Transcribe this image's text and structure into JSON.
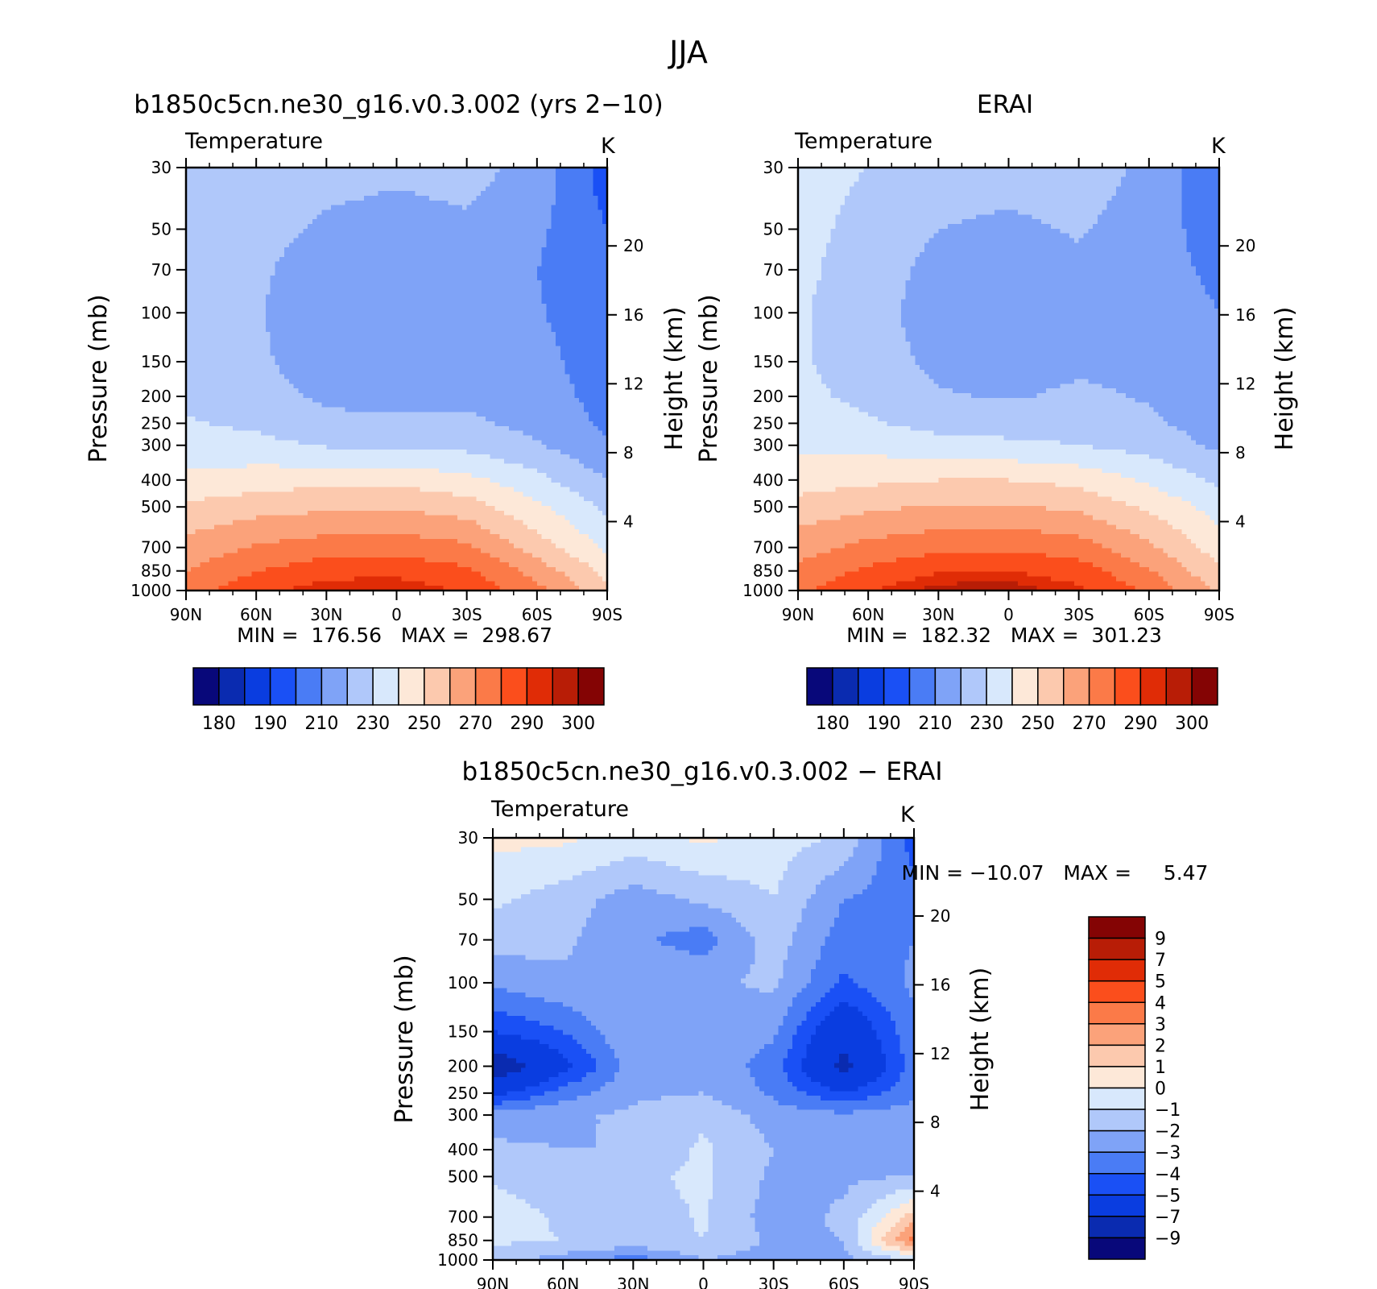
{
  "figure": {
    "title": "JJA"
  },
  "palettes": {
    "abs": [
      "#08087a",
      "#0a2bb0",
      "#0a3de0",
      "#1a50f5",
      "#4a7cf5",
      "#7fa3f7",
      "#b0c8fa",
      "#d8e8fc",
      "#fde8d8",
      "#fcc9ae",
      "#fba27a",
      "#fb7a48",
      "#fb4e1c",
      "#e02c06",
      "#b81d06",
      "#840404"
    ],
    "diff": [
      "#08087a",
      "#0a2bb0",
      "#0a3de0",
      "#1a50f5",
      "#4a7cf5",
      "#7fa3f7",
      "#b0c8fa",
      "#d8e8fc",
      "#fde8d8",
      "#fcc9ae",
      "#fba27a",
      "#fb7a48",
      "#fb4e1c",
      "#e02c06",
      "#b81d06",
      "#840404"
    ]
  },
  "common": {
    "variable": "Temperature",
    "units": "K",
    "ylabel": "Pressure (mb)",
    "ylabel_right": "Height (km)",
    "pressure_ticks": [
      "30",
      "50",
      "70",
      "100",
      "150",
      "200",
      "250",
      "300",
      "400",
      "500",
      "700",
      "850",
      "1000"
    ],
    "height_ticks": [
      "20",
      "16",
      "12",
      "8",
      "4"
    ],
    "lat_ticks": [
      "90N",
      "60N",
      "30N",
      "0",
      "30S",
      "60S",
      "90S"
    ]
  },
  "chart_data": [
    {
      "type": "heatmap",
      "title": "b1850c5cn.ne30_g16.v0.3.002 (yrs 2−10)",
      "stats": "MIN =  176.56   MAX =  298.67",
      "colorbar_labels": [
        "180",
        "190",
        "210",
        "230",
        "250",
        "270",
        "290",
        "300"
      ],
      "x": [
        -90,
        -60,
        -30,
        0,
        30,
        60,
        90
      ],
      "y": [
        30,
        50,
        70,
        100,
        150,
        200,
        250,
        300,
        400,
        500,
        700,
        850,
        1000
      ],
      "z": [
        [
          229,
          228,
          224,
          222,
          224,
          216,
          195
        ],
        [
          228,
          224,
          218,
          216,
          218,
          212,
          200
        ],
        [
          228,
          222,
          214,
          211,
          214,
          210,
          202
        ],
        [
          227,
          221,
          212,
          210,
          212,
          211,
          203
        ],
        [
          227,
          222,
          214,
          212,
          214,
          213,
          205
        ],
        [
          228,
          224,
          218,
          216,
          218,
          214,
          207
        ],
        [
          231,
          228,
          223,
          222,
          222,
          217,
          208
        ],
        [
          235,
          233,
          229,
          228,
          227,
          221,
          211
        ],
        [
          242,
          245,
          247,
          247,
          243,
          233,
          220
        ],
        [
          252,
          256,
          258,
          259,
          255,
          242,
          228
        ],
        [
          264,
          271,
          275,
          276,
          272,
          255,
          238
        ],
        [
          270,
          280,
          286,
          287,
          282,
          266,
          247
        ],
        [
          276,
          286,
          295,
          296,
          288,
          273,
          252
        ]
      ]
    },
    {
      "type": "heatmap",
      "title": "ERAI",
      "stats": "MIN =  182.32   MAX =  301.23",
      "colorbar_labels": [
        "180",
        "190",
        "210",
        "230",
        "250",
        "270",
        "290",
        "300"
      ],
      "x": [
        -90,
        -60,
        -30,
        0,
        30,
        60,
        90
      ],
      "y": [
        30,
        50,
        70,
        100,
        150,
        200,
        250,
        300,
        400,
        500,
        700,
        850,
        1000
      ],
      "z": [
        [
          232,
          230,
          225,
          224,
          225,
          218,
          200
        ],
        [
          232,
          228,
          220,
          218,
          221,
          215,
          205
        ],
        [
          232,
          226,
          216,
          214,
          218,
          214,
          208
        ],
        [
          231,
          225,
          214,
          212,
          216,
          215,
          210
        ],
        [
          231,
          226,
          217,
          215,
          218,
          217,
          212
        ],
        [
          232,
          228,
          221,
          219,
          222,
          219,
          214
        ],
        [
          234,
          231,
          227,
          226,
          226,
          222,
          215
        ],
        [
          238,
          237,
          233,
          232,
          230,
          226,
          218
        ],
        [
          245,
          248,
          250,
          250,
          247,
          238,
          228
        ],
        [
          254,
          258,
          261,
          261,
          258,
          248,
          236
        ],
        [
          266,
          273,
          277,
          278,
          275,
          262,
          245
        ],
        [
          272,
          282,
          289,
          290,
          285,
          271,
          252
        ],
        [
          278,
          289,
          298,
          299,
          292,
          278,
          258
        ]
      ]
    },
    {
      "type": "heatmap",
      "title": "b1850c5cn.ne30_g16.v0.3.002 − ERAI",
      "stats": "MIN = −10.07   MAX =     5.47",
      "colorbar_labels": [
        "9",
        "7",
        "5",
        "4",
        "3",
        "2",
        "1",
        "0",
        "−1",
        "−2",
        "−3",
        "−4",
        "−5",
        "−7",
        "−9"
      ],
      "x": [
        -90,
        -60,
        -30,
        0,
        30,
        60,
        90
      ],
      "y": [
        30,
        50,
        70,
        100,
        150,
        200,
        250,
        300,
        400,
        500,
        700,
        850,
        1000
      ],
      "z": [
        [
          0.3,
          0.2,
          -0.4,
          0.2,
          -0.5,
          -1.2,
          -4.5
        ],
        [
          -0.8,
          -1.5,
          -2.5,
          -1.8,
          -1.0,
          -3.0,
          -3.5
        ],
        [
          -1.5,
          -1.8,
          -2.8,
          -3.5,
          -1.5,
          -3.5,
          -3.0
        ],
        [
          -2.8,
          -2.2,
          -2.0,
          -2.2,
          -1.8,
          -4.2,
          -2.8
        ],
        [
          -5.0,
          -4.0,
          -2.0,
          -2.2,
          -2.8,
          -6.5,
          -3.2
        ],
        [
          -8.5,
          -5.5,
          -2.5,
          -2.2,
          -3.5,
          -7.5,
          -3.5
        ],
        [
          -5.5,
          -3.5,
          -2.2,
          -2.0,
          -3.2,
          -5.0,
          -3.2
        ],
        [
          -2.5,
          -2.2,
          -1.8,
          -1.2,
          -2.5,
          -2.8,
          -2.5
        ],
        [
          -1.8,
          -2.0,
          -2.0,
          -0.8,
          -2.0,
          -2.5,
          -2.2
        ],
        [
          -1.2,
          -1.8,
          -1.2,
          -0.8,
          -2.2,
          -2.2,
          -2.0
        ],
        [
          -0.3,
          -1.2,
          -1.5,
          -0.9,
          -2.5,
          -1.8,
          1.5
        ],
        [
          -0.8,
          -1.0,
          -1.2,
          -1.0,
          -2.2,
          -2.0,
          3.5
        ],
        [
          -1.5,
          -2.5,
          -3.5,
          -2.0,
          -2.5,
          -2.2,
          -1.0
        ]
      ]
    }
  ]
}
